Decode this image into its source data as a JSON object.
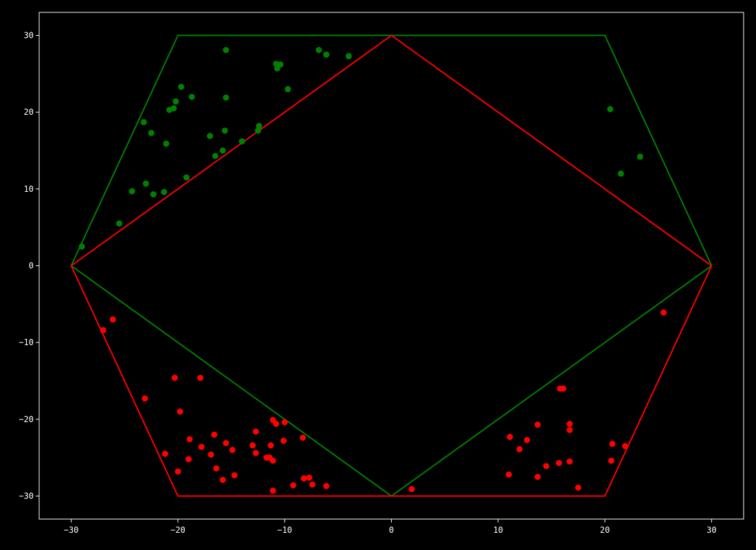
{
  "colors": {
    "background": "#000000",
    "axes": "#ffffff",
    "green": "#008000",
    "red": "#ff0000"
  },
  "chart_data": {
    "type": "scatter",
    "title": "",
    "xlabel": "",
    "ylabel": "",
    "xlim": [
      -33,
      33
    ],
    "ylim": [
      -33,
      33
    ],
    "grid": false,
    "x_ticks": [
      -30,
      -20,
      -10,
      0,
      10,
      20,
      30
    ],
    "y_ticks": [
      -30,
      -20,
      -10,
      0,
      10,
      20,
      30
    ],
    "x_tick_labels": [
      "−30",
      "−20",
      "−10",
      "0",
      "10",
      "20",
      "30"
    ],
    "y_tick_labels": [
      "−30",
      "−20",
      "−10",
      "0",
      "10",
      "20",
      "30"
    ],
    "lines": [
      {
        "color": "#008000",
        "points": [
          [
            -30,
            0
          ],
          [
            -20,
            30
          ],
          [
            20,
            30
          ],
          [
            30,
            0
          ],
          [
            0,
            -30
          ],
          [
            -30,
            0
          ]
        ]
      },
      {
        "color": "#ff0000",
        "points": [
          [
            -30,
            0
          ],
          [
            0,
            30
          ],
          [
            30,
            0
          ],
          [
            20,
            -30
          ],
          [
            -20,
            -30
          ],
          [
            -30,
            0
          ]
        ]
      }
    ],
    "series": [
      {
        "color": "#008000",
        "points": [
          [
            -29.0,
            2.5
          ],
          [
            -25.5,
            5.5
          ],
          [
            -24.3,
            9.7
          ],
          [
            -23.0,
            10.7
          ],
          [
            -22.3,
            9.3
          ],
          [
            -21.3,
            9.6
          ],
          [
            -19.2,
            11.5
          ],
          [
            -23.2,
            18.7
          ],
          [
            -22.5,
            17.3
          ],
          [
            -21.1,
            15.9
          ],
          [
            -20.8,
            20.3
          ],
          [
            -20.4,
            20.5
          ],
          [
            -20.2,
            21.4
          ],
          [
            -19.7,
            23.3
          ],
          [
            -18.7,
            22.0
          ],
          [
            -17.0,
            16.9
          ],
          [
            -16.5,
            14.3
          ],
          [
            -15.8,
            15.0
          ],
          [
            -15.6,
            17.6
          ],
          [
            -15.5,
            21.9
          ],
          [
            -15.5,
            28.1
          ],
          [
            -14.0,
            16.2
          ],
          [
            -12.5,
            17.6
          ],
          [
            -12.4,
            18.2
          ],
          [
            -10.8,
            26.3
          ],
          [
            -10.7,
            25.7
          ],
          [
            -10.4,
            26.2
          ],
          [
            -9.7,
            23.0
          ],
          [
            -6.8,
            28.1
          ],
          [
            -6.1,
            27.5
          ],
          [
            -4.0,
            27.3
          ],
          [
            20.5,
            20.4
          ],
          [
            21.5,
            12.0
          ],
          [
            23.3,
            14.2
          ]
        ]
      },
      {
        "color": "#ff0000",
        "points": [
          [
            -27.0,
            -8.4
          ],
          [
            -26.1,
            -7.0
          ],
          [
            -23.1,
            -17.3
          ],
          [
            -21.2,
            -24.5
          ],
          [
            -20.3,
            -14.6
          ],
          [
            -20.0,
            -26.8
          ],
          [
            -19.8,
            -19.0
          ],
          [
            -19.0,
            -25.2
          ],
          [
            -18.9,
            -22.6
          ],
          [
            -17.9,
            -14.6
          ],
          [
            -17.8,
            -23.6
          ],
          [
            -16.9,
            -24.6
          ],
          [
            -16.6,
            -22.0
          ],
          [
            -16.4,
            -26.4
          ],
          [
            -15.8,
            -27.9
          ],
          [
            -15.5,
            -23.1
          ],
          [
            -14.9,
            -24.0
          ],
          [
            -14.7,
            -27.3
          ],
          [
            -13.0,
            -23.4
          ],
          [
            -12.7,
            -24.4
          ],
          [
            -12.7,
            -21.6
          ],
          [
            -11.7,
            -25.0
          ],
          [
            -11.4,
            -25.0
          ],
          [
            -11.3,
            -23.4
          ],
          [
            -11.1,
            -25.4
          ],
          [
            -11.1,
            -20.1
          ],
          [
            -11.1,
            -29.3
          ],
          [
            -10.8,
            -20.6
          ],
          [
            -10.1,
            -22.8
          ],
          [
            -10.0,
            -20.4
          ],
          [
            -9.2,
            -28.6
          ],
          [
            -8.3,
            -22.4
          ],
          [
            -8.2,
            -27.7
          ],
          [
            -7.7,
            -27.6
          ],
          [
            -7.4,
            -28.5
          ],
          [
            -6.1,
            -28.7
          ],
          [
            1.9,
            -29.1
          ],
          [
            11.0,
            -27.2
          ],
          [
            11.1,
            -22.3
          ],
          [
            12.0,
            -23.9
          ],
          [
            12.7,
            -22.7
          ],
          [
            13.7,
            -20.7
          ],
          [
            13.7,
            -27.5
          ],
          [
            14.5,
            -26.1
          ],
          [
            15.7,
            -25.7
          ],
          [
            15.8,
            -16.0
          ],
          [
            16.1,
            -16.0
          ],
          [
            16.7,
            -20.6
          ],
          [
            16.7,
            -21.4
          ],
          [
            16.7,
            -25.5
          ],
          [
            17.5,
            -28.9
          ],
          [
            20.6,
            -25.4
          ],
          [
            20.7,
            -23.2
          ],
          [
            21.9,
            -23.5
          ],
          [
            25.5,
            -6.1
          ]
        ]
      }
    ]
  }
}
